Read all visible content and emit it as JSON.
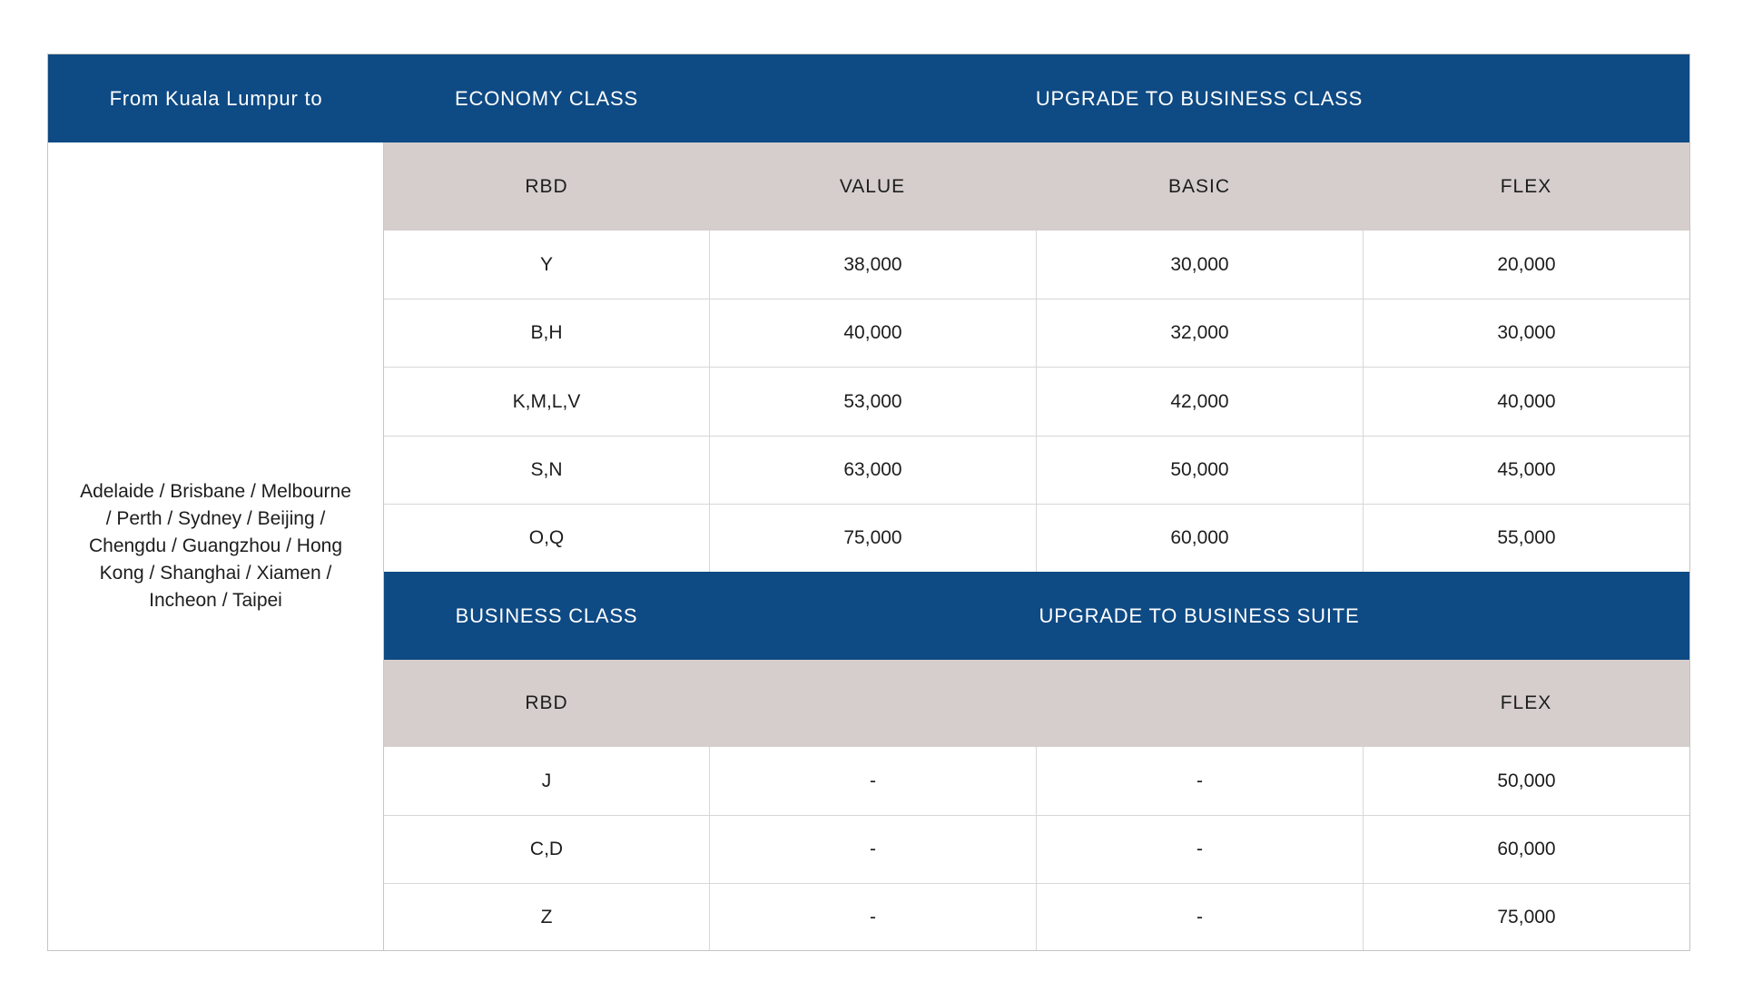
{
  "colors": {
    "header_blue": "#0e4a84",
    "subheader_gray": "#d5cecc",
    "text_dark": "#1d1d1d",
    "grid_line": "#d9d7d5",
    "background": "#ffffff"
  },
  "table": {
    "origin_header": "From Kuala Lumpur to",
    "destinations": "Adelaide / Brisbane / Melbourne / Perth / Sydney / Beijing / Chengdu / Guangzhou / Hong Kong / Shanghai / Xiamen / Incheon / Taipei",
    "economy": {
      "cabin_header": "ECONOMY CLASS",
      "upgrade_header": "UPGRADE TO BUSINESS CLASS",
      "col_headers": {
        "rbd": "RBD",
        "value": "VALUE",
        "basic": "BASIC",
        "flex": "FLEX"
      },
      "rows": [
        {
          "rbd": "Y",
          "value": "38,000",
          "basic": "30,000",
          "flex": "20,000"
        },
        {
          "rbd": "B,H",
          "value": "40,000",
          "basic": "32,000",
          "flex": "30,000"
        },
        {
          "rbd": "K,M,L,V",
          "value": "53,000",
          "basic": "42,000",
          "flex": "40,000"
        },
        {
          "rbd": "S,N",
          "value": "63,000",
          "basic": "50,000",
          "flex": "45,000"
        },
        {
          "rbd": "O,Q",
          "value": "75,000",
          "basic": "60,000",
          "flex": "55,000"
        }
      ]
    },
    "business": {
      "cabin_header": "BUSINESS CLASS",
      "upgrade_header": "UPGRADE TO BUSINESS SUITE",
      "col_headers": {
        "rbd": "RBD",
        "value": "",
        "basic": "",
        "flex": "FLEX"
      },
      "rows": [
        {
          "rbd": "J",
          "value": "-",
          "basic": "-",
          "flex": "50,000"
        },
        {
          "rbd": "C,D",
          "value": "-",
          "basic": "-",
          "flex": "60,000"
        },
        {
          "rbd": "Z",
          "value": "-",
          "basic": "-",
          "flex": "75,000"
        }
      ]
    }
  },
  "chart_data": [
    {
      "type": "table",
      "title": "ECONOMY CLASS / UPGRADE TO BUSINESS CLASS",
      "row_header": "From Kuala Lumpur to Adelaide / Brisbane / Melbourne / Perth / Sydney / Beijing / Chengdu / Guangzhou / Hong Kong / Shanghai / Xiamen / Incheon / Taipei",
      "columns": [
        "RBD",
        "VALUE",
        "BASIC",
        "FLEX"
      ],
      "rows": [
        [
          "Y",
          "38,000",
          "30,000",
          "20,000"
        ],
        [
          "B,H",
          "40,000",
          "32,000",
          "30,000"
        ],
        [
          "K,M,L,V",
          "53,000",
          "42,000",
          "40,000"
        ],
        [
          "S,N",
          "63,000",
          "50,000",
          "45,000"
        ],
        [
          "O,Q",
          "75,000",
          "60,000",
          "55,000"
        ]
      ]
    },
    {
      "type": "table",
      "title": "BUSINESS CLASS / UPGRADE TO BUSINESS SUITE",
      "row_header": "From Kuala Lumpur to Adelaide / Brisbane / Melbourne / Perth / Sydney / Beijing / Chengdu / Guangzhou / Hong Kong / Shanghai / Xiamen / Incheon / Taipei",
      "columns": [
        "RBD",
        "",
        "",
        "FLEX"
      ],
      "rows": [
        [
          "J",
          "-",
          "-",
          "50,000"
        ],
        [
          "C,D",
          "-",
          "-",
          "60,000"
        ],
        [
          "Z",
          "-",
          "-",
          "75,000"
        ]
      ]
    }
  ]
}
